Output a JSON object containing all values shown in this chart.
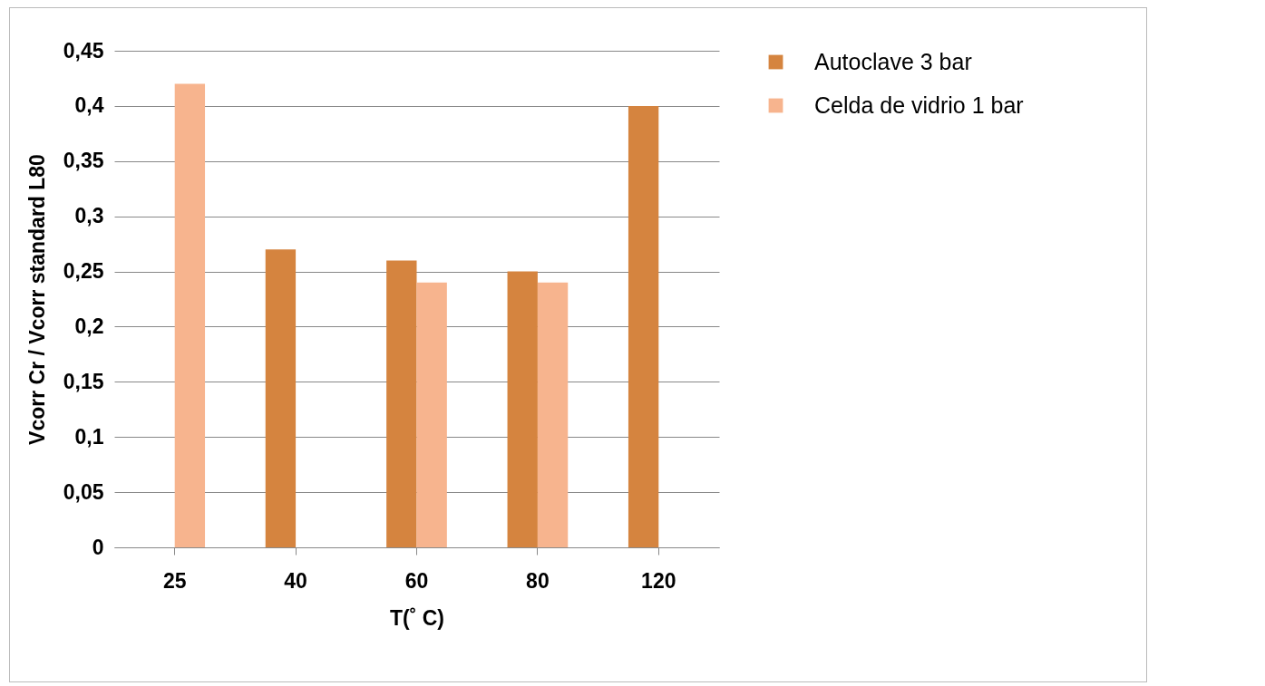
{
  "chart_data": {
    "type": "bar",
    "xlabel": "T(˚ C)",
    "ylabel": "Vcorr Cr / Vcorr standard L80",
    "categories": [
      "25",
      "40",
      "60",
      "80",
      "120"
    ],
    "series": [
      {
        "name": "Autoclave 3 bar",
        "color": "#d5843f",
        "values": [
          null,
          0.27,
          0.26,
          0.25,
          0.4
        ]
      },
      {
        "name": "Celda de vidrio 1 bar",
        "color": "#f7b48e",
        "values": [
          0.42,
          null,
          0.24,
          0.24,
          null
        ]
      }
    ],
    "ylim": [
      0,
      0.45
    ],
    "yticks": [
      {
        "value": 0,
        "label": "0"
      },
      {
        "value": 0.05,
        "label": "0,05"
      },
      {
        "value": 0.1,
        "label": "0,1"
      },
      {
        "value": 0.15,
        "label": "0,15"
      },
      {
        "value": 0.2,
        "label": "0,2"
      },
      {
        "value": 0.25,
        "label": "0,25"
      },
      {
        "value": 0.3,
        "label": "0,3"
      },
      {
        "value": 0.35,
        "label": "0,35"
      },
      {
        "value": 0.4,
        "label": "0,4"
      },
      {
        "value": 0.45,
        "label": "0,45"
      }
    ],
    "grid": "y",
    "legend": "right"
  }
}
